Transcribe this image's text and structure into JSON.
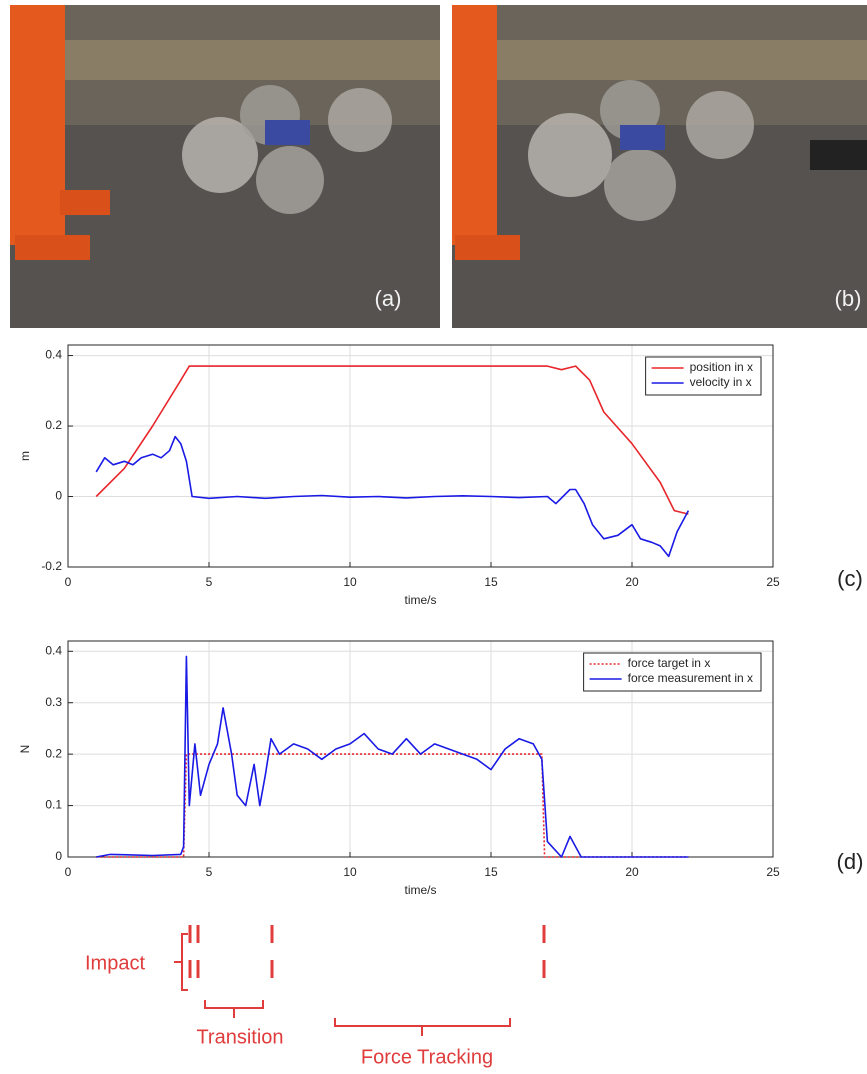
{
  "photos": [
    {
      "label": "(a)"
    },
    {
      "label": "(b)"
    }
  ],
  "panel_labels": [
    "(c)",
    "(d)"
  ],
  "annotations": [
    "Impact",
    "Transition",
    "Force Tracking"
  ],
  "chart_data": [
    {
      "type": "line",
      "xlabel": "time/s",
      "ylabel": "m",
      "xlim": [
        0,
        25
      ],
      "xticks": [
        0,
        5,
        10,
        15,
        20,
        25
      ],
      "ylim": [
        -0.2,
        0.43
      ],
      "yticks": [
        -0.2,
        0,
        0.2,
        0.4
      ],
      "grid": true,
      "legend": "upper right",
      "series": [
        {
          "name": "position in x",
          "color": "#e8262b",
          "line_style": "solid",
          "x": [
            1,
            2,
            3,
            4,
            4.3,
            6,
            10,
            15,
            17,
            17.5,
            18,
            18.5,
            19,
            20,
            21,
            21.5,
            22
          ],
          "values": [
            0,
            0.08,
            0.2,
            0.33,
            0.37,
            0.37,
            0.37,
            0.37,
            0.37,
            0.36,
            0.37,
            0.33,
            0.24,
            0.15,
            0.04,
            -0.04,
            -0.05
          ]
        },
        {
          "name": "velocity in x",
          "color": "#1a1ae6",
          "line_style": "solid",
          "x": [
            1,
            1.3,
            1.6,
            2,
            2.3,
            2.6,
            3,
            3.3,
            3.6,
            3.8,
            4,
            4.2,
            4.4,
            5,
            6,
            7,
            8,
            9,
            10,
            11,
            12,
            13,
            14,
            15,
            16,
            17,
            17.3,
            17.8,
            18,
            18.3,
            18.6,
            19,
            19.5,
            20,
            20.3,
            20.7,
            21,
            21.3,
            21.6,
            22
          ],
          "values": [
            0.07,
            0.11,
            0.09,
            0.1,
            0.09,
            0.11,
            0.12,
            0.11,
            0.13,
            0.17,
            0.15,
            0.1,
            0,
            -0.005,
            0,
            -0.005,
            0,
            0.003,
            -0.002,
            0,
            -0.004,
            0,
            0.002,
            0,
            -0.003,
            0,
            -0.02,
            0.02,
            0.02,
            -0.02,
            -0.08,
            -0.12,
            -0.11,
            -0.08,
            -0.12,
            -0.13,
            -0.14,
            -0.17,
            -0.1,
            -0.04
          ]
        }
      ]
    },
    {
      "type": "line",
      "xlabel": "time/s",
      "ylabel": "N",
      "xlim": [
        0,
        25
      ],
      "xticks": [
        0,
        5,
        10,
        15,
        20,
        25
      ],
      "ylim": [
        0,
        0.42
      ],
      "yticks": [
        0,
        0.1,
        0.2,
        0.3,
        0.4
      ],
      "grid": true,
      "legend": "upper right",
      "series": [
        {
          "name": "force target in x",
          "color": "#e8262b",
          "line_style": "dotted",
          "x": [
            1,
            4.1,
            4.2,
            16.8,
            16.9,
            22
          ],
          "values": [
            0,
            0,
            0.2,
            0.2,
            0,
            0
          ]
        },
        {
          "name": "force measurement in x",
          "color": "#1a1ae6",
          "line_style": "solid",
          "x": [
            1,
            1.5,
            3,
            4,
            4.1,
            4.2,
            4.3,
            4.5,
            4.7,
            5,
            5.3,
            5.5,
            5.8,
            6,
            6.3,
            6.6,
            6.8,
            7,
            7.2,
            7.5,
            8,
            8.5,
            9,
            9.5,
            10,
            10.5,
            11,
            11.5,
            12,
            12.5,
            13,
            13.5,
            14,
            14.5,
            15,
            15.5,
            16,
            16.5,
            16.8,
            17,
            17.5,
            17.8,
            18,
            18.2,
            22
          ],
          "values": [
            0,
            0.005,
            0.003,
            0.005,
            0.02,
            0.39,
            0.1,
            0.22,
            0.12,
            0.18,
            0.22,
            0.29,
            0.2,
            0.12,
            0.1,
            0.18,
            0.1,
            0.16,
            0.23,
            0.2,
            0.22,
            0.21,
            0.19,
            0.21,
            0.22,
            0.24,
            0.21,
            0.2,
            0.23,
            0.2,
            0.22,
            0.21,
            0.2,
            0.19,
            0.17,
            0.21,
            0.23,
            0.22,
            0.19,
            0.03,
            0,
            0.04,
            0.02,
            0,
            0
          ]
        }
      ]
    }
  ]
}
